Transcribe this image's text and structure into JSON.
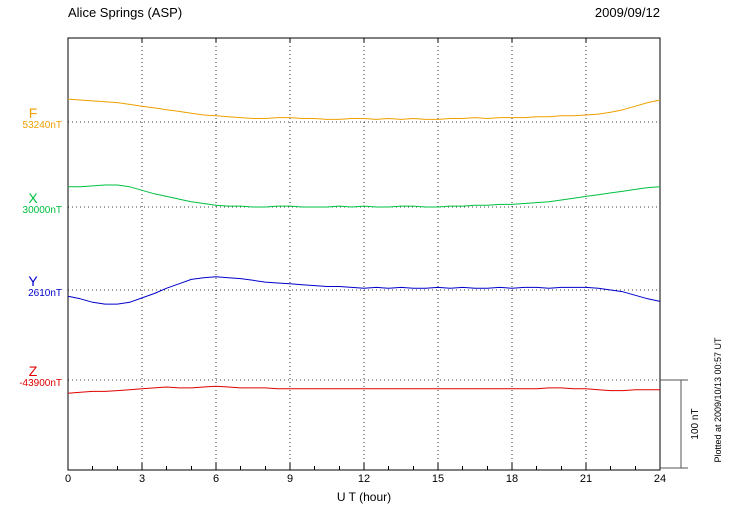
{
  "chart_data": {
    "type": "line",
    "title": "Alice Springs (ASP)",
    "date": "2009/09/12",
    "xlabel": "U T (hour)",
    "x_ticks": [
      0,
      3,
      6,
      9,
      12,
      15,
      18,
      21,
      24
    ],
    "x_range_hours": [
      0,
      24
    ],
    "x_hours": [
      0,
      0.5,
      1,
      1.5,
      2,
      2.5,
      3,
      3.5,
      4,
      4.5,
      5,
      5.5,
      6,
      6.5,
      7,
      7.5,
      8,
      8.5,
      9,
      9.5,
      10,
      10.5,
      11,
      11.5,
      12,
      12.5,
      13,
      13.5,
      14,
      14.5,
      15,
      15.5,
      16,
      16.5,
      17,
      17.5,
      18,
      18.5,
      19,
      19.5,
      20,
      20.5,
      21,
      21.5,
      22,
      22.5,
      23,
      23.5,
      24
    ],
    "series": [
      {
        "name": "F",
        "reference": "53240nT",
        "reference_nT": 53240,
        "color": "#EFA000",
        "values_rel_nT": [
          26,
          25,
          24,
          23,
          22,
          20,
          18,
          16,
          14,
          12,
          10,
          8,
          7,
          6,
          5,
          4,
          4,
          5,
          5,
          4,
          4,
          3,
          3,
          4,
          4,
          3,
          4,
          3,
          4,
          3,
          3,
          4,
          4,
          5,
          4,
          5,
          5,
          5,
          6,
          6,
          7,
          7,
          8,
          9,
          11,
          14,
          18,
          22,
          25
        ]
      },
      {
        "name": "X",
        "reference": "30000nT",
        "reference_nT": 30000,
        "color": "#00C040",
        "values_rel_nT": [
          23,
          23,
          24,
          25,
          25,
          23,
          19,
          15,
          12,
          9,
          6,
          4,
          2,
          1,
          1,
          0,
          0,
          1,
          1,
          0,
          0,
          0,
          1,
          0,
          1,
          0,
          0,
          1,
          1,
          0,
          0,
          1,
          1,
          2,
          2,
          3,
          3,
          4,
          5,
          6,
          8,
          10,
          12,
          14,
          16,
          18,
          20,
          22,
          23
        ]
      },
      {
        "name": "Y",
        "reference": "2610nT",
        "reference_nT": 2610,
        "color": "#0000CC",
        "values_rel_nT": [
          -7,
          -10,
          -14,
          -16,
          -16,
          -14,
          -9,
          -4,
          2,
          7,
          12,
          14,
          15,
          14,
          13,
          11,
          9,
          8,
          7,
          6,
          5,
          4,
          4,
          3,
          2,
          3,
          2,
          3,
          2,
          2,
          3,
          2,
          3,
          2,
          2,
          3,
          2,
          3,
          3,
          2,
          3,
          3,
          3,
          2,
          0,
          -2,
          -6,
          -10,
          -13
        ]
      },
      {
        "name": "Z",
        "reference": "-43900nT",
        "reference_nT": -43900,
        "color": "#E00000",
        "values_rel_nT": [
          -15,
          -14,
          -13,
          -13,
          -12,
          -11,
          -10,
          -9,
          -8,
          -9,
          -9,
          -8,
          -7,
          -8,
          -9,
          -9,
          -9,
          -10,
          -10,
          -10,
          -10,
          -10,
          -10,
          -10,
          -10,
          -10,
          -10,
          -10,
          -10,
          -10,
          -10,
          -10,
          -10,
          -10,
          -10,
          -10,
          -10,
          -10,
          -10,
          -9,
          -9,
          -10,
          -10,
          -11,
          -12,
          -12,
          -11,
          -11,
          -11
        ]
      }
    ],
    "scalebar": {
      "label": "100 nT",
      "span_nT": 100
    },
    "plotted_at": "Plotted at 2009/10/13 00:57 UT",
    "grid": "dotted vertical lines every 3 hours; dotted horizontal reference baseline per channel",
    "legend_position": "left channel labels"
  }
}
